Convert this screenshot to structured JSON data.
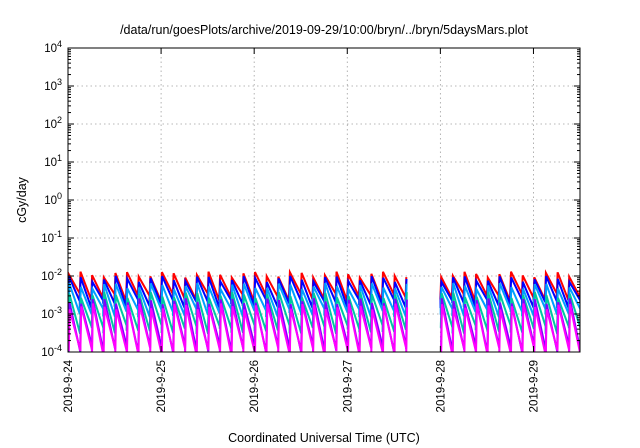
{
  "chart_data": {
    "type": "line",
    "title": "/data/run/goesPlots/archive/2019-09-29/10:00/bryn/../bryn/5daysMars.plot",
    "xlabel": "Coordinated Universal Time (UTC)",
    "ylabel": "cGy/day",
    "yscale": "log",
    "ylim": [
      0.0001,
      10000
    ],
    "xlim": [
      "2019-09-24T00:00",
      "2019-09-29T12:00"
    ],
    "x_tick_labels": [
      "2019-9-24",
      "2019-9-25",
      "2019-9-26",
      "2019-9-27",
      "2019-9-28",
      "2019-9-29"
    ],
    "y_tick_exponents": [
      -4,
      -3,
      -2,
      -1,
      0,
      1,
      2,
      3,
      4
    ],
    "grid": true,
    "legend": "none",
    "sawtooth_period_hours": 3,
    "gaps": [
      [
        "2019-09-27T15:30",
        "2019-09-27T22:30"
      ]
    ],
    "series": [
      {
        "color": "#ff0000",
        "peak": 0.011,
        "low": 0.0028
      },
      {
        "color": "#0000ff",
        "peak": 0.0085,
        "low": 0.0019
      },
      {
        "color": "#00a0ff",
        "peak": 0.0055,
        "low": 0.0011
      },
      {
        "color": "#00c8a0",
        "peak": 0.0032,
        "low": 0.0004
      },
      {
        "color": "#8000ff",
        "peak": 0.0022,
        "low": 0.00012
      },
      {
        "color": "#ff00ff",
        "peak": 0.0016,
        "low": 0.0001
      }
    ]
  }
}
